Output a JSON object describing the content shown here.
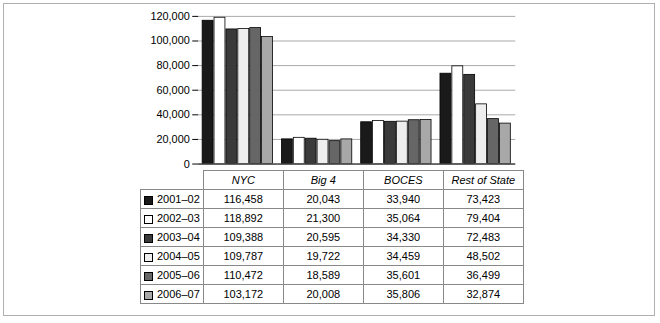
{
  "chart_data": {
    "type": "bar",
    "categories": [
      "NYC",
      "Big 4",
      "BOCES",
      "Rest of State"
    ],
    "ylim": [
      0,
      120000
    ],
    "yticks": [
      0,
      {
        "value": 20000,
        "label": "20,000"
      },
      {
        "value": 40000,
        "label": "40,000"
      },
      {
        "value": 60000,
        "label": "60,000"
      },
      {
        "value": 80000,
        "label": "80,000"
      },
      {
        "value": 100000,
        "label": "100,000"
      },
      {
        "value": 120000,
        "label": "120,000"
      }
    ],
    "grid": true,
    "series": [
      {
        "name": "2001–02",
        "color": "#1a1a1a",
        "values": [
          116458,
          20043,
          33940,
          73423
        ],
        "value_labels": [
          "116,458",
          "20,043",
          "33,940",
          "73,423"
        ]
      },
      {
        "name": "2002–03",
        "color": "#ffffff",
        "values": [
          118892,
          21300,
          35064,
          79404
        ],
        "value_labels": [
          "118,892",
          "21,300",
          "35,064",
          "79,404"
        ]
      },
      {
        "name": "2003–04",
        "color": "#3a3a3a",
        "values": [
          109388,
          20595,
          34330,
          72483
        ],
        "value_labels": [
          "109,388",
          "20,595",
          "34,330",
          "72,483"
        ]
      },
      {
        "name": "2004–05",
        "color": "#eeeeee",
        "values": [
          109787,
          19722,
          34459,
          48502
        ],
        "value_labels": [
          "109,787",
          "19,722",
          "34,459",
          "48,502"
        ]
      },
      {
        "name": "2005–06",
        "color": "#666666",
        "values": [
          110472,
          18589,
          35601,
          36499
        ],
        "value_labels": [
          "110,472",
          "18,589",
          "35,601",
          "36,499"
        ]
      },
      {
        "name": "2006–07",
        "color": "#a8a8a8",
        "values": [
          103172,
          20008,
          35806,
          32874
        ],
        "value_labels": [
          "103,172",
          "20,008",
          "35,806",
          "32,874"
        ]
      }
    ]
  }
}
